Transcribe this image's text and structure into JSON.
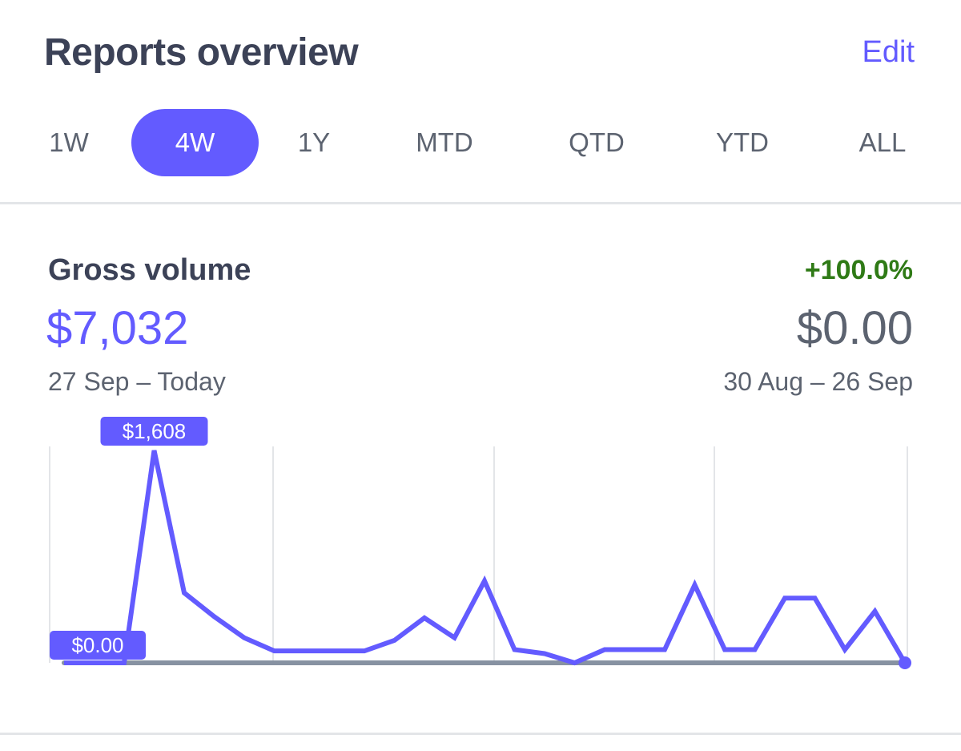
{
  "header": {
    "title": "Reports overview",
    "edit_label": "Edit"
  },
  "tabs": [
    {
      "label": "1W",
      "active": false
    },
    {
      "label": "4W",
      "active": true
    },
    {
      "label": "1Y",
      "active": false
    },
    {
      "label": "MTD",
      "active": false
    },
    {
      "label": "QTD",
      "active": false
    },
    {
      "label": "YTD",
      "active": false
    },
    {
      "label": "ALL",
      "active": false
    }
  ],
  "metric": {
    "title": "Gross volume",
    "change": "+100.0%",
    "current_value": "$7,032",
    "previous_value": "$0.00",
    "current_range": "27 Sep – Today",
    "previous_range": "30 Aug – 26 Sep"
  },
  "colors": {
    "accent": "#635bff",
    "positive": "#2f7a16",
    "baseline": "#8792a2",
    "grid": "#e3e5e8"
  },
  "chart_data": {
    "type": "line",
    "ylim": [
      0,
      1608
    ],
    "max_label": "$1,608",
    "min_label": "$0.00",
    "series": [
      {
        "values": [
          0,
          0,
          0,
          1608,
          530,
          350,
          190,
          90,
          90,
          90,
          90,
          170,
          340,
          190,
          620,
          100,
          70,
          0,
          100,
          100,
          100,
          590,
          100,
          100,
          490,
          490,
          100,
          390,
          0
        ]
      },
      {
        "values": [
          0,
          0,
          0,
          0,
          0,
          0,
          0,
          0,
          0,
          0,
          0,
          0,
          0,
          0,
          0,
          0,
          0,
          0,
          0,
          0,
          0,
          0,
          0,
          0,
          0,
          0,
          0,
          0,
          0
        ]
      }
    ]
  }
}
